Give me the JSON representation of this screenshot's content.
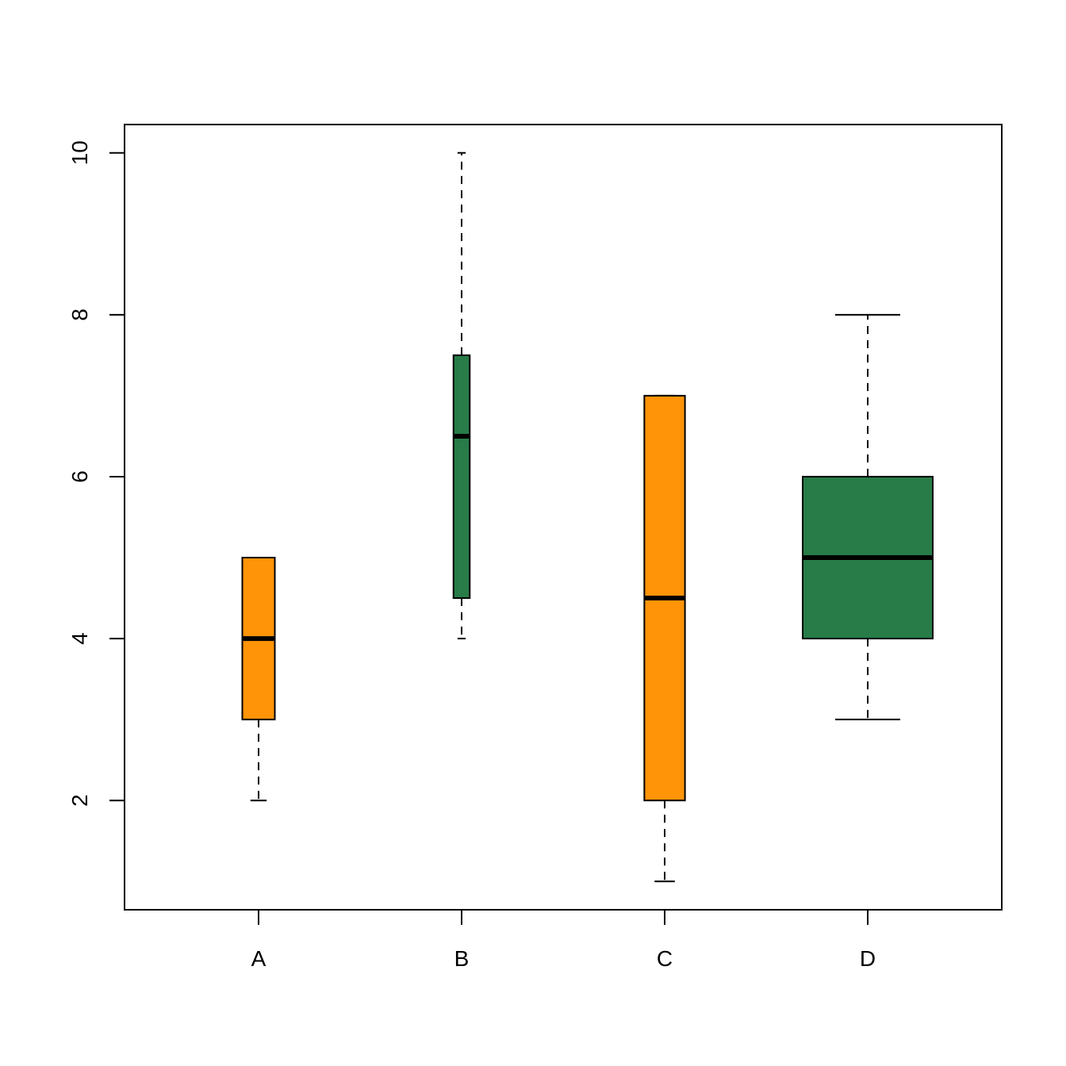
{
  "chart_data": {
    "type": "box",
    "title": "",
    "xlabel": "",
    "ylabel": "",
    "categories": [
      "A",
      "B",
      "C",
      "D"
    ],
    "boxes": [
      {
        "category": "A",
        "min": 2,
        "q1": 3,
        "median": 4,
        "q3": 5,
        "max": 5,
        "color": "#FF9408"
      },
      {
        "category": "B",
        "min": 4,
        "q1": 4.5,
        "median": 6.5,
        "q3": 7.5,
        "max": 10,
        "color": "#277C48"
      },
      {
        "category": "C",
        "min": 1,
        "q1": 2,
        "median": 4.5,
        "q3": 7,
        "max": 7,
        "color": "#FF9408"
      },
      {
        "category": "D",
        "min": 3,
        "q1": 4,
        "median": 5,
        "q3": 6,
        "max": 8,
        "color": "#277C48"
      }
    ],
    "relative_widths": [
      0.2,
      0.1,
      0.25,
      0.8
    ],
    "ylim": [
      0.65,
      10.35
    ],
    "yticks": [
      2,
      4,
      6,
      8,
      10
    ],
    "grid": false,
    "legend": "none"
  }
}
